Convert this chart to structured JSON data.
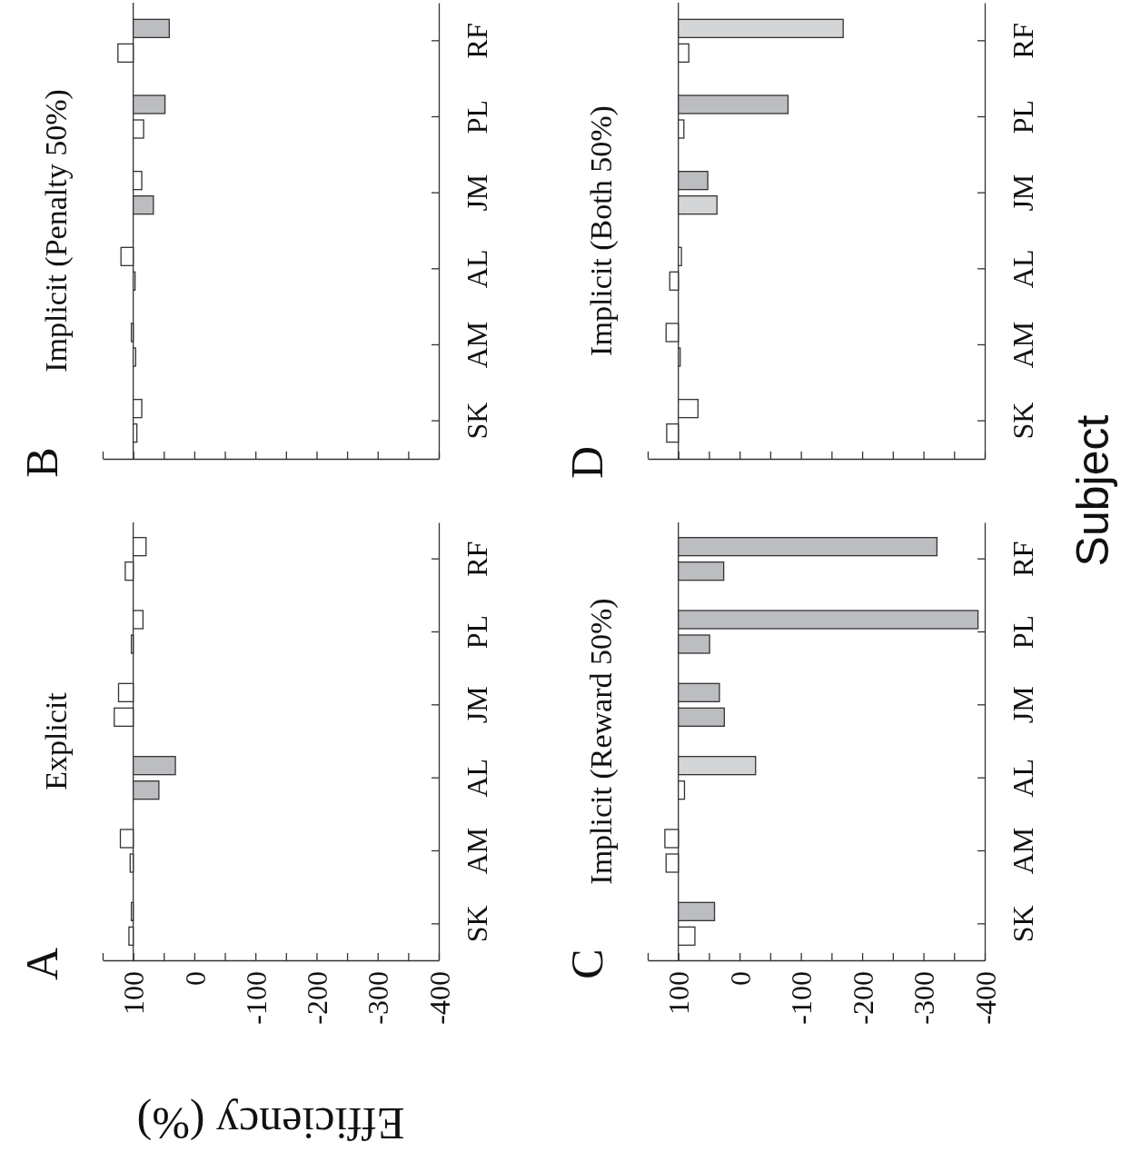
{
  "chart_data": [
    {
      "type": "bar",
      "orientation": "horizontal",
      "title": "Explicit",
      "xlabel": "Efficiency (%)",
      "annotations": [
        "A"
      ],
      "categories": [
        "RF",
        "PL",
        "JM",
        "AL",
        "AM",
        "SK"
      ],
      "series": [
        {
          "values": [
            -21,
            -16,
            24,
            -69,
            21,
            3
          ],
          "base": [
            100,
            100,
            100,
            100,
            100,
            100
          ],
          "colors": [
            "#ffffff",
            "#ffffff",
            "#ffffff",
            "#bcbdc1",
            "#ffffff",
            "#ffffff"
          ]
        },
        {
          "values": [
            13,
            3,
            31,
            -42,
            5,
            7
          ],
          "base": [
            100,
            100,
            100,
            100,
            100,
            100
          ],
          "colors": [
            "#ffffff",
            "#ffffff",
            "#ffffff",
            "#bcbdc1",
            "#ffffff",
            "#ffffff"
          ]
        }
      ],
      "xlim": [
        150,
        -400
      ],
      "xticks": [
        {
          "value": 150,
          "label": null
        },
        100,
        {
          "value": 50,
          "label": null
        },
        0,
        {
          "value": -50,
          "label": null
        },
        -100,
        {
          "value": -150,
          "label": null
        },
        -200,
        {
          "value": -250,
          "label": null
        },
        -300,
        {
          "value": -350,
          "label": null
        },
        -400
      ],
      "ref_lines": [
        {
          "axis": "x",
          "value": 100
        }
      ]
    },
    {
      "type": "bar",
      "orientation": "horizontal",
      "title": "Implicit (Penalty 50%)",
      "annotations": [
        "B"
      ],
      "categories": [
        "RF",
        "PL",
        "JM",
        "AL",
        "AM",
        "SK"
      ],
      "series": [
        {
          "values": [
            -59,
            -52,
            -14,
            20,
            3,
            -14
          ],
          "base": [
            100,
            100,
            100,
            100,
            100,
            100
          ],
          "colors": [
            "#bcbdc1",
            "#bcbdc1",
            "#ffffff",
            "#ffffff",
            "#ffffff",
            "#ffffff"
          ]
        },
        {
          "values": [
            25,
            -17,
            -33,
            -3,
            -4,
            -6
          ],
          "base": [
            100,
            100,
            100,
            100,
            100,
            100
          ],
          "colors": [
            "#ffffff",
            "#ffffff",
            "#bcbdc1",
            "#ffffff",
            "#ffffff",
            "#ffffff"
          ]
        }
      ],
      "xlim": [
        150,
        -400
      ],
      "xticks": [
        {
          "value": 150,
          "label": null
        },
        100,
        {
          "value": 50,
          "label": null
        },
        0,
        {
          "value": -50,
          "label": null
        },
        -100,
        {
          "value": -150,
          "label": null
        },
        -200,
        {
          "value": -250,
          "label": null
        },
        -300,
        {
          "value": -350,
          "label": null
        },
        -400
      ],
      "tick_labels": "y",
      "ref_lines": [
        {
          "axis": "x",
          "value": 100
        }
      ]
    },
    {
      "type": "bar",
      "orientation": "horizontal",
      "title": "Implicit (Reward 50%)",
      "annotations": [
        "C"
      ],
      "categories": [
        "RF",
        "PL",
        "JM",
        "AL",
        "AM",
        "SK"
      ],
      "series": [
        {
          "values": [
            -422,
            -489,
            -67,
            -126,
            22,
            -59
          ],
          "base": [
            100,
            100,
            100,
            100,
            100,
            100
          ],
          "colors": [
            "#bcbdc1",
            "#bcbdc1",
            "#bcbdc1",
            "#d4d5d7",
            "#ffffff",
            "#bcbdc1"
          ]
        },
        {
          "values": [
            -74,
            -51,
            -75,
            -10,
            20,
            -27
          ],
          "base": [
            100,
            100,
            100,
            100,
            100,
            100
          ],
          "colors": [
            "#bcbdc1",
            "#bcbdc1",
            "#bcbdc1",
            "#ffffff",
            "#ffffff",
            "#ffffff"
          ]
        }
      ],
      "xlim": [
        150,
        -400
      ],
      "xticks": [
        {
          "value": 150,
          "label": null
        },
        100,
        {
          "value": 50,
          "label": null
        },
        0,
        {
          "value": -50,
          "label": null
        },
        -100,
        {
          "value": -150,
          "label": null
        },
        -200,
        {
          "value": -250,
          "label": null
        },
        -300,
        {
          "value": -350,
          "label": null
        },
        -400
      ],
      "ref_lines": [
        {
          "axis": "x",
          "value": 100
        }
      ]
    },
    {
      "type": "bar",
      "orientation": "horizontal",
      "title": "Implicit (Both 50%)",
      "ylabel": "Subject",
      "annotations": [
        "D"
      ],
      "categories": [
        "RF",
        "PL",
        "JM",
        "AL",
        "AM",
        "SK"
      ],
      "series": [
        {
          "values": [
            -269,
            -179,
            -48,
            -5,
            20,
            -32
          ],
          "base": [
            100,
            100,
            100,
            100,
            100,
            100
          ],
          "colors": [
            "#d4d5d7",
            "#bcbdc1",
            "#bcbdc1",
            "#ffffff",
            "#ffffff",
            "#ffffff"
          ]
        },
        {
          "values": [
            -17,
            -9,
            -63,
            14,
            -3,
            19
          ],
          "base": [
            100,
            100,
            100,
            100,
            100,
            100
          ],
          "colors": [
            "#ffffff",
            "#ffffff",
            "#d4d5d7",
            "#ffffff",
            "#ffffff",
            "#ffffff"
          ]
        }
      ],
      "xlim": [
        150,
        -400
      ],
      "xticks": [
        {
          "value": 150,
          "label": null
        },
        100,
        {
          "value": 50,
          "label": null
        },
        0,
        {
          "value": -50,
          "label": null
        },
        -100,
        {
          "value": -150,
          "label": null
        },
        -200,
        {
          "value": -250,
          "label": null
        },
        -300,
        {
          "value": -350,
          "label": null
        },
        -400
      ],
      "tick_labels": "y",
      "ref_lines": [
        {
          "axis": "x",
          "value": 100
        }
      ]
    }
  ]
}
